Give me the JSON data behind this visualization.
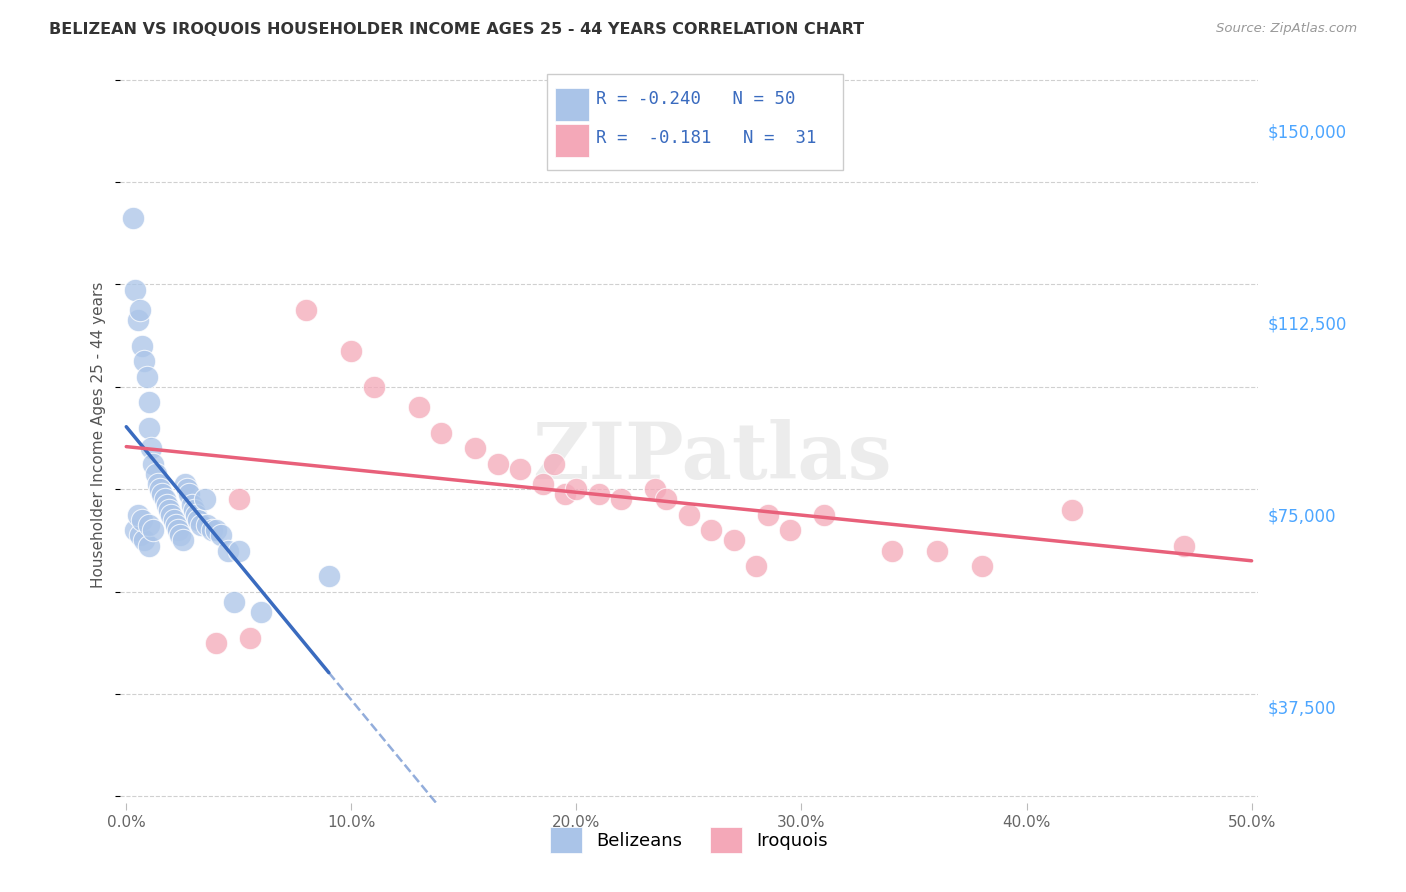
{
  "title": "BELIZEAN VS IROQUOIS HOUSEHOLDER INCOME AGES 25 - 44 YEARS CORRELATION CHART",
  "source": "Source: ZipAtlas.com",
  "ylabel": "Householder Income Ages 25 - 44 years",
  "xlim": [
    -0.003,
    0.503
  ],
  "ylim": [
    18750,
    162500
  ],
  "xlabel_values": [
    0.0,
    0.1,
    0.2,
    0.3,
    0.4,
    0.5
  ],
  "xlabel_ticks": [
    "0.0%",
    "10.0%",
    "20.0%",
    "30.0%",
    "40.0%",
    "50.0%"
  ],
  "ylabel_values": [
    37500,
    75000,
    112500,
    150000
  ],
  "ylabel_ticks": [
    "$37,500",
    "$75,000",
    "$112,500",
    "$150,000"
  ],
  "legend_label1": "Belizeans",
  "legend_label2": "Iroquois",
  "R1": -0.24,
  "N1": 50,
  "R2": -0.181,
  "N2": 31,
  "belizean_x": [
    0.003,
    0.004,
    0.005,
    0.006,
    0.007,
    0.008,
    0.009,
    0.01,
    0.01,
    0.011,
    0.012,
    0.013,
    0.014,
    0.015,
    0.016,
    0.017,
    0.018,
    0.019,
    0.02,
    0.021,
    0.022,
    0.023,
    0.024,
    0.025,
    0.026,
    0.027,
    0.028,
    0.029,
    0.03,
    0.031,
    0.032,
    0.033,
    0.035,
    0.036,
    0.038,
    0.04,
    0.042,
    0.045,
    0.048,
    0.05,
    0.004,
    0.006,
    0.008,
    0.01,
    0.005,
    0.007,
    0.01,
    0.012,
    0.06,
    0.09
  ],
  "belizean_y": [
    133000,
    119000,
    113000,
    115000,
    108000,
    105000,
    102000,
    97000,
    92000,
    88000,
    85000,
    83000,
    81000,
    80000,
    79000,
    78000,
    77000,
    76000,
    75000,
    74000,
    73000,
    72000,
    71000,
    70000,
    81000,
    80000,
    79000,
    77000,
    76000,
    75000,
    74000,
    73000,
    78000,
    73000,
    72000,
    72000,
    71000,
    68000,
    58000,
    68000,
    72000,
    71000,
    70000,
    69000,
    75000,
    74000,
    73000,
    72000,
    56000,
    63000
  ],
  "iroquois_x": [
    0.04,
    0.055,
    0.08,
    0.1,
    0.11,
    0.13,
    0.14,
    0.155,
    0.165,
    0.175,
    0.185,
    0.19,
    0.195,
    0.2,
    0.21,
    0.22,
    0.235,
    0.25,
    0.26,
    0.27,
    0.285,
    0.295,
    0.31,
    0.34,
    0.36,
    0.38,
    0.42,
    0.47,
    0.05,
    0.24,
    0.28
  ],
  "iroquois_y": [
    50000,
    51000,
    115000,
    107000,
    100000,
    96000,
    91000,
    88000,
    85000,
    84000,
    81000,
    85000,
    79000,
    80000,
    79000,
    78000,
    80000,
    75000,
    72000,
    70000,
    75000,
    72000,
    75000,
    68000,
    68000,
    65000,
    76000,
    69000,
    78000,
    78000,
    65000
  ],
  "watermark": "ZIPatlas",
  "bg_color": "#ffffff",
  "grid_color": "#d0d0d0",
  "blue_scatter_color": "#aac4e8",
  "pink_scatter_color": "#f4a8b8",
  "blue_line_color": "#3a6bbf",
  "pink_line_color": "#e8607a",
  "axis_right_color": "#4da6ff",
  "title_color": "#333333"
}
